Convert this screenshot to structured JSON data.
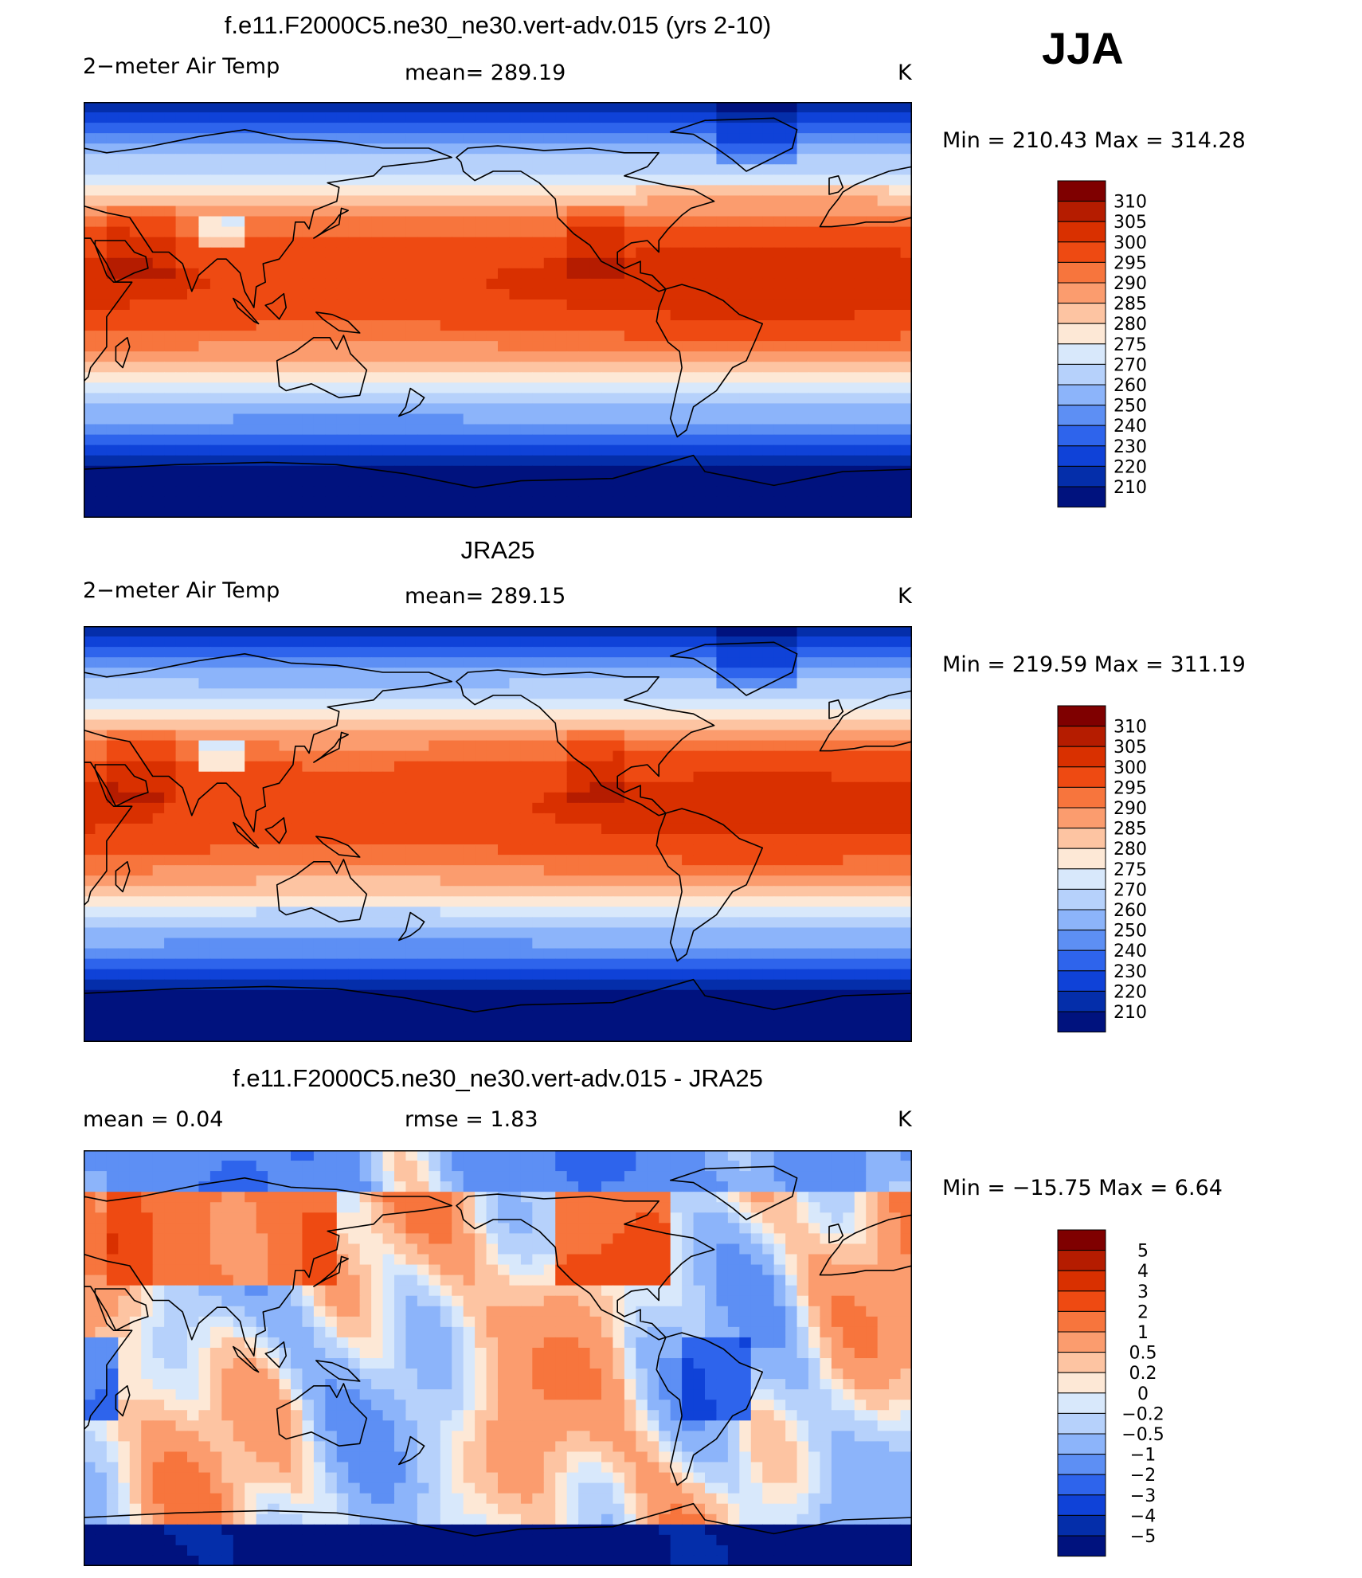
{
  "season": "JJA",
  "panels": [
    {
      "title": "f.e11.F2000C5.ne30_ne30.vert-adv.015 (yrs 2-10)",
      "left_label": "2−meter Air Temp",
      "center_label": "mean=  289.19",
      "units": "K",
      "minmax": "Min  =  210.43  Max  =  314.28"
    },
    {
      "title": "JRA25",
      "left_label": "2−meter Air Temp",
      "center_label": "mean=  289.15",
      "units": "K",
      "minmax": "Min  =  219.59  Max  =  311.19"
    },
    {
      "title": "f.e11.F2000C5.ne30_ne30.vert-adv.015 - JRA25",
      "left_label": "mean  =      0.04",
      "center_label": "rmse  =      1.83",
      "units": "K",
      "minmax": "Min  =  −15.75  Max  =      6.64"
    }
  ],
  "chart_data": [
    {
      "type": "heatmap",
      "title": "f.e11.F2000C5.ne30_ne30.vert-adv.015 (yrs 2-10)",
      "variable": "2−meter Air Temp",
      "units": "K",
      "mean": 289.19,
      "min": 210.43,
      "max": 314.28,
      "colorbar": {
        "levels": [
          "310",
          "305",
          "300",
          "295",
          "290",
          "285",
          "280",
          "275",
          "270",
          "260",
          "250",
          "240",
          "230",
          "220",
          "210"
        ],
        "colors": [
          "#7f0000",
          "#b51c00",
          "#d93000",
          "#ee4a12",
          "#f7753d",
          "#fb9c6e",
          "#fdc4a2",
          "#fde8d6",
          "#d8e8fb",
          "#b6d1fb",
          "#8cb4fa",
          "#5d8ff4",
          "#2e64ec",
          "#0f42d8",
          "#042eaa",
          "#00127e"
        ]
      }
    },
    {
      "type": "heatmap",
      "title": "JRA25",
      "variable": "2−meter Air Temp",
      "units": "K",
      "mean": 289.15,
      "min": 219.59,
      "max": 311.19,
      "colorbar": {
        "levels": [
          "310",
          "305",
          "300",
          "295",
          "290",
          "285",
          "280",
          "275",
          "270",
          "260",
          "250",
          "240",
          "230",
          "220",
          "210"
        ],
        "colors": [
          "#7f0000",
          "#b51c00",
          "#d93000",
          "#ee4a12",
          "#f7753d",
          "#fb9c6e",
          "#fdc4a2",
          "#fde8d6",
          "#d8e8fb",
          "#b6d1fb",
          "#8cb4fa",
          "#5d8ff4",
          "#2e64ec",
          "#0f42d8",
          "#042eaa",
          "#00127e"
        ]
      }
    },
    {
      "type": "heatmap",
      "title": "f.e11.F2000C5.ne30_ne30.vert-adv.015 - JRA25",
      "units": "K",
      "mean": 0.04,
      "rmse": 1.83,
      "min": -15.75,
      "max": 6.64,
      "colorbar": {
        "levels": [
          "5",
          "4",
          "3",
          "2",
          "1",
          "0.5",
          "0.2",
          "0",
          "−0.2",
          "−0.5",
          "−1",
          "−2",
          "−3",
          "−4",
          "−5"
        ],
        "colors": [
          "#7f0000",
          "#b51c00",
          "#d93000",
          "#ee4a12",
          "#f7753d",
          "#fb9c6e",
          "#fdc4a2",
          "#fde8d6",
          "#d8e8fb",
          "#b6d1fb",
          "#8cb4fa",
          "#5d8ff4",
          "#2e64ec",
          "#0f42d8",
          "#042eaa",
          "#00127e"
        ]
      }
    }
  ]
}
